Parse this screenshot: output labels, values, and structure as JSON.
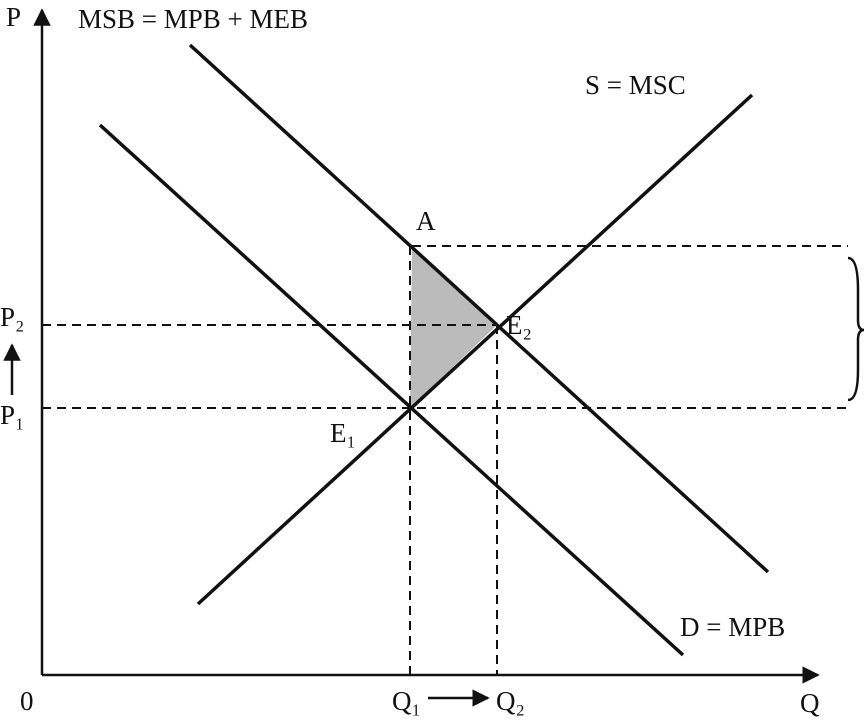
{
  "axes": {
    "y_label": "P",
    "x_label": "Q",
    "origin": "0"
  },
  "curves": {
    "msb": "MSB = MPB + MEB",
    "supply": "S = MSC",
    "demand": "D = MPB"
  },
  "points": {
    "a": "A",
    "e1": "E₁",
    "e2": "E₂"
  },
  "prices": {
    "p2": "P₂",
    "p1": "P₁"
  },
  "quantities": {
    "q1": "Q₁",
    "q2": "Q₂"
  }
}
